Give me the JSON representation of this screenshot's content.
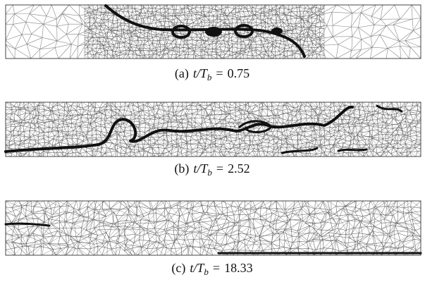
{
  "figure": {
    "panels": [
      {
        "label": "(a)",
        "variable": "t/T",
        "subscript": "b",
        "relation": "=",
        "value": "0.75"
      },
      {
        "label": "(b)",
        "variable": "t/T",
        "subscript": "b",
        "relation": "=",
        "value": "2.52"
      },
      {
        "label": "(c)",
        "variable": "t/T",
        "subscript": "b",
        "relation": "=",
        "value": "18.33"
      }
    ]
  }
}
